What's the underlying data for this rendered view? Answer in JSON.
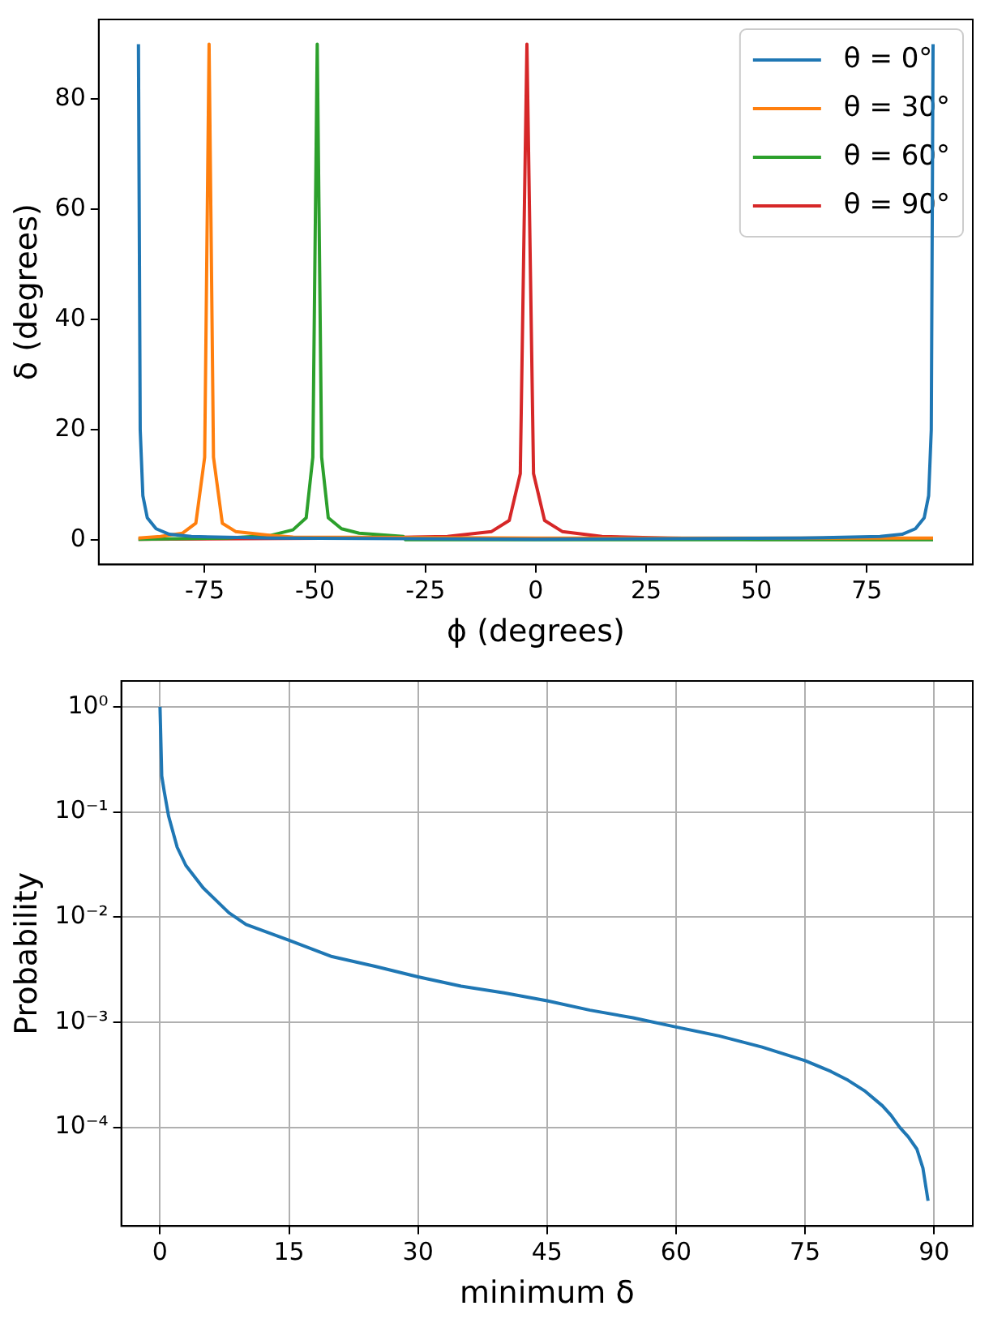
{
  "chart_data": [
    {
      "type": "line",
      "xlabel": "ϕ (degrees)",
      "ylabel": "δ (degrees)",
      "xlim": [
        -99,
        99
      ],
      "ylim": [
        -4.5,
        94.5
      ],
      "xticks": [
        -75,
        -50,
        -25,
        0,
        25,
        50,
        75
      ],
      "yticks": [
        0,
        20,
        40,
        60,
        80
      ],
      "grid": false,
      "legend": "top right",
      "marker": "none",
      "line_style": "solid",
      "series": [
        {
          "name": "θ = 0°",
          "color": "#1f77b4",
          "x": [
            -90,
            -89.6,
            -89,
            -88,
            -86,
            -83,
            -78,
            -60,
            0,
            60,
            78,
            83,
            86,
            88,
            89,
            89.6,
            90
          ],
          "values": [
            90,
            20,
            8,
            4,
            2,
            1,
            0.6,
            0.3,
            0.1,
            0.3,
            0.6,
            1,
            2,
            4,
            8,
            20,
            90
          ]
        },
        {
          "name": "θ = 30°",
          "color": "#ff7f0e",
          "x": [
            -90,
            -85,
            -80,
            -77,
            -75,
            -74,
            -73,
            -71,
            -68,
            -60,
            -55,
            0,
            90
          ],
          "values": [
            0.3,
            0.6,
            1.2,
            3,
            15,
            90,
            15,
            3,
            1.5,
            0.8,
            0.5,
            0.3,
            0.3
          ]
        },
        {
          "name": "θ = 60°",
          "color": "#2ca02c",
          "x": [
            -90,
            -70,
            -60,
            -55,
            -52,
            -50.5,
            -49.5,
            -48.5,
            -47,
            -44,
            -40,
            -30,
            -29.5,
            90
          ],
          "values": [
            0.1,
            0.3,
            0.8,
            1.8,
            4,
            15,
            90,
            15,
            4,
            2,
            1.2,
            0.6,
            0,
            0
          ]
        },
        {
          "name": "θ = 90°",
          "color": "#d62728",
          "x": [
            -90,
            -40,
            -20,
            -10,
            -6,
            -3.5,
            -2,
            -0.5,
            2,
            6,
            15,
            30,
            50,
            90
          ],
          "values": [
            0.1,
            0.3,
            0.6,
            1.5,
            3.5,
            12,
            90,
            12,
            3.5,
            1.5,
            0.6,
            0.3,
            0.1,
            0.1
          ]
        }
      ]
    },
    {
      "type": "line",
      "xlabel": "minimum δ",
      "ylabel": "Probability",
      "log": "y",
      "xlim": [
        -4.5,
        94.5
      ],
      "ylim": [
        1.15e-05,
        1.76
      ],
      "xticks": [
        0,
        15,
        30,
        45,
        60,
        75,
        90
      ],
      "yticks": [
        {
          "value": 1,
          "label": "10⁰"
        },
        {
          "value": 0.1,
          "label": "10⁻¹"
        },
        {
          "value": 0.01,
          "label": "10⁻²"
        },
        {
          "value": 0.001,
          "label": "10⁻³"
        },
        {
          "value": 0.0001,
          "label": "10⁻⁴"
        }
      ],
      "grid": true,
      "legend": false,
      "marker": "none",
      "line_style": "solid",
      "series": [
        {
          "color": "#1f77b4",
          "x": [
            0,
            0.2,
            0.5,
            1,
            2,
            3,
            5,
            8,
            10,
            15,
            20,
            25,
            30,
            35,
            40,
            45,
            50,
            55,
            60,
            65,
            70,
            75,
            78,
            80,
            82,
            84,
            85,
            86,
            87,
            88,
            88.7,
            89.3
          ],
          "values": [
            1,
            0.22,
            0.155,
            0.091,
            0.046,
            0.031,
            0.019,
            0.011,
            0.0085,
            0.006,
            0.0042,
            0.0034,
            0.0027,
            0.0022,
            0.0019,
            0.0016,
            0.0013,
            0.0011,
            0.0009,
            0.00074,
            0.00058,
            0.00043,
            0.00034,
            0.00028,
            0.00022,
            0.00016,
            0.00013,
            0.0001,
            8.1e-05,
            6.2e-05,
            4.1e-05,
            2e-05
          ]
        }
      ]
    }
  ]
}
